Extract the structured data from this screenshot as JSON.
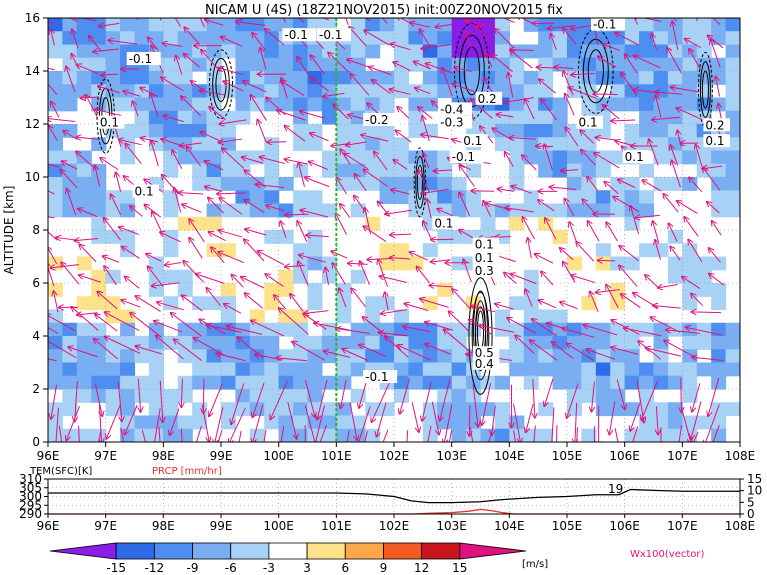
{
  "chart_data": [
    {
      "type": "heatmap",
      "title": "NICAM U (4S) (18Z21NOV2015) init:00Z20NOV2015 fix",
      "ylabel": "ALTITUDE [km]",
      "xlabel": "",
      "x_ticks": [
        "96E",
        "97E",
        "98E",
        "99E",
        "100E",
        "101E",
        "102E",
        "103E",
        "104E",
        "105E",
        "106E",
        "107E",
        "108E"
      ],
      "y_ticks": [
        "0",
        "2",
        "4",
        "6",
        "8",
        "10",
        "12",
        "14",
        "16"
      ],
      "xlim": [
        96,
        108
      ],
      "ylim": [
        0,
        16
      ],
      "grid": true,
      "marker_line_lon": 101,
      "contour_labels": [
        {
          "text": "-0.1",
          "lon": 100.1,
          "alt": 15.2
        },
        {
          "text": "-0.1",
          "lon": 100.7,
          "alt": 15.2
        },
        {
          "text": "-0.1",
          "lon": 97.4,
          "alt": 14.3
        },
        {
          "text": "0.1",
          "lon": 96.9,
          "alt": 11.9
        },
        {
          "text": "0.1",
          "lon": 97.5,
          "alt": 9.3
        },
        {
          "text": "-0.2",
          "lon": 101.5,
          "alt": 12.0
        },
        {
          "text": "-0.4",
          "lon": 102.8,
          "alt": 12.4
        },
        {
          "text": "-0.3",
          "lon": 102.8,
          "alt": 11.9
        },
        {
          "text": "0.2",
          "lon": 103.45,
          "alt": 12.8
        },
        {
          "text": "0.1",
          "lon": 103.2,
          "alt": 11.2
        },
        {
          "text": "-0.1",
          "lon": 103.0,
          "alt": 10.6
        },
        {
          "text": "0.1",
          "lon": 102.7,
          "alt": 8.1
        },
        {
          "text": "-0.1",
          "lon": 105.45,
          "alt": 15.6
        },
        {
          "text": "0.1",
          "lon": 105.2,
          "alt": 11.9
        },
        {
          "text": "0.1",
          "lon": 106.0,
          "alt": 10.6
        },
        {
          "text": "0.2",
          "lon": 107.4,
          "alt": 11.8
        },
        {
          "text": "0.1",
          "lon": 107.4,
          "alt": 11.2
        },
        {
          "text": "0.1",
          "lon": 103.4,
          "alt": 7.3
        },
        {
          "text": "0.1",
          "lon": 103.4,
          "alt": 6.8
        },
        {
          "text": "0.3",
          "lon": 103.4,
          "alt": 6.3
        },
        {
          "text": "0.5",
          "lon": 103.4,
          "alt": 3.2
        },
        {
          "text": "0.4",
          "lon": 103.4,
          "alt": 2.8
        },
        {
          "text": "-0.1",
          "lon": 101.5,
          "alt": 2.3
        }
      ],
      "contour_cells": [
        {
          "lon": 103.35,
          "alt": 14.0,
          "rx": 0.3,
          "ry": 1.8
        },
        {
          "lon": 103.5,
          "alt": 4.0,
          "rx": 0.2,
          "ry": 2.2
        },
        {
          "lon": 103.5,
          "alt": 4.2,
          "rx": 0.12,
          "ry": 1.5
        },
        {
          "lon": 107.4,
          "alt": 13.3,
          "rx": 0.12,
          "ry": 1.4
        },
        {
          "lon": 97.0,
          "alt": 12.3,
          "rx": 0.15,
          "ry": 1.4
        },
        {
          "lon": 99.0,
          "alt": 13.5,
          "rx": 0.2,
          "ry": 1.3
        },
        {
          "lon": 105.5,
          "alt": 14.0,
          "rx": 0.3,
          "ry": 1.6
        },
        {
          "lon": 102.45,
          "alt": 9.8,
          "rx": 0.1,
          "ry": 1.3
        }
      ],
      "colorbar": {
        "ticks": [
          "-15",
          "-12",
          "-9",
          "-6",
          "-3",
          "3",
          "6",
          "9",
          "12",
          "15"
        ],
        "unit": "[m/s]",
        "colors": [
          "#8a1de8",
          "#2f6be8",
          "#4d8ef0",
          "#7aaef3",
          "#a8d2f5",
          "#ffffff",
          "#fde28a",
          "#fca84a",
          "#f35b23",
          "#c9151c",
          "#e0127d"
        ],
        "vector_label": "Wx100(vector)"
      }
    },
    {
      "type": "line",
      "title": "",
      "left_label": "TEM(SFC)[K]",
      "right_label": "PRCP [mm/hr]",
      "y_ticks_left": [
        "290",
        "295",
        "300",
        "305",
        "310"
      ],
      "y_ticks_right": [
        "0",
        "5",
        "10",
        "15"
      ],
      "x_ticks": [
        "96E",
        "97E",
        "98E",
        "99E",
        "100E",
        "101E",
        "102E",
        "103E",
        "104E",
        "105E",
        "106E",
        "107E",
        "108E"
      ],
      "annotation": "19",
      "series": [
        {
          "kind": "temperature",
          "color": "#000000",
          "x": [
            96,
            97,
            98,
            99,
            100,
            101,
            101.5,
            102,
            102.3,
            102.6,
            103,
            103.5,
            103.8,
            104,
            104.5,
            105,
            105.5,
            105.9,
            106.1,
            106.5,
            107,
            108
          ],
          "y": [
            302,
            302,
            302,
            302,
            302,
            302,
            301.5,
            300,
            297.5,
            296.5,
            296.5,
            297,
            298,
            298.5,
            299.5,
            300,
            301,
            301,
            304,
            303.5,
            303,
            303
          ]
        },
        {
          "kind": "precipitation",
          "color": "#e8332a",
          "x": [
            96,
            101.8,
            102.3,
            102.6,
            103,
            103.3,
            103.5,
            103.7,
            103.9,
            104.1,
            108
          ],
          "y": [
            0,
            0,
            0,
            0.3,
            0.6,
            1.2,
            2.0,
            1.4,
            0.5,
            0,
            0
          ]
        }
      ]
    }
  ]
}
